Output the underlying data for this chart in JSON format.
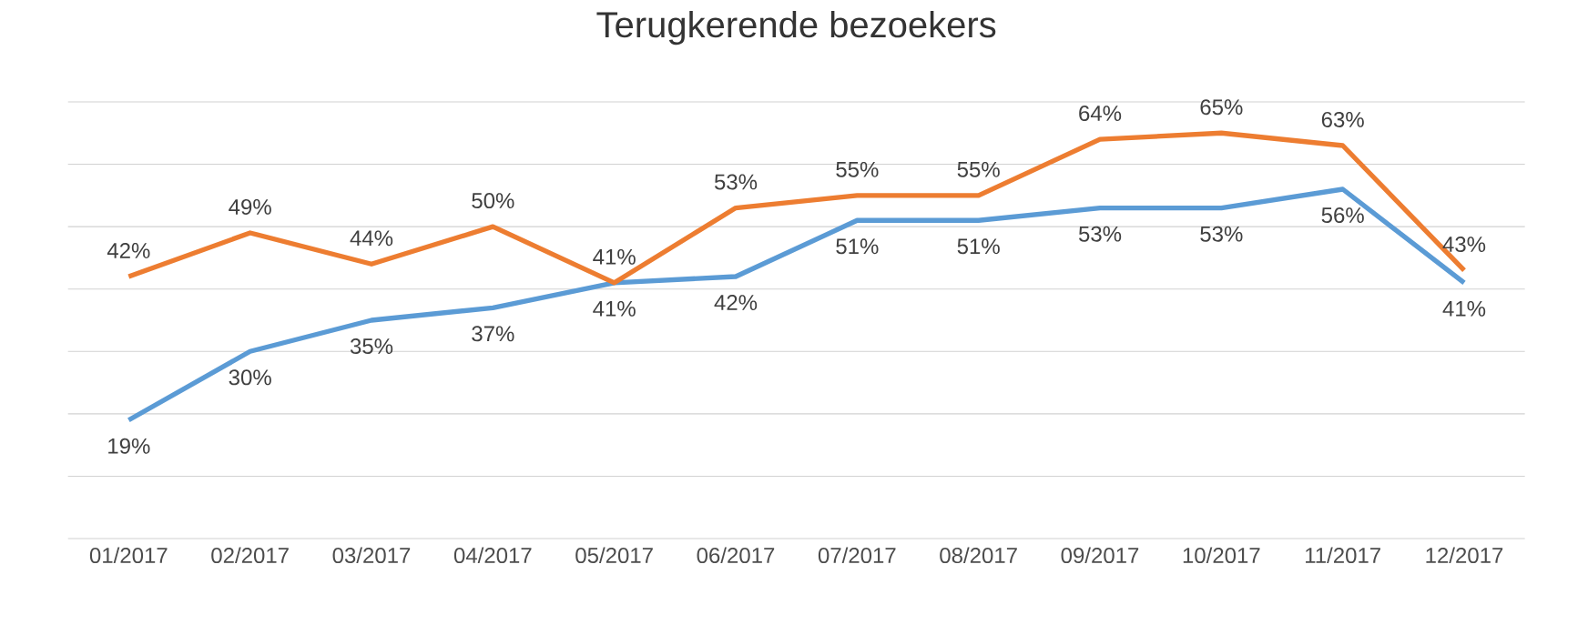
{
  "chart_data": {
    "type": "line",
    "title": "Terugkerende bezoekers",
    "categories": [
      "01/2017",
      "02/2017",
      "03/2017",
      "04/2017",
      "05/2017",
      "06/2017",
      "07/2017",
      "08/2017",
      "09/2017",
      "10/2017",
      "11/2017",
      "12/2017"
    ],
    "series": [
      {
        "color": "#5b9bd5",
        "values": [
          19,
          30,
          35,
          37,
          41,
          42,
          51,
          51,
          53,
          53,
          56,
          41
        ],
        "value_labels": [
          "19%",
          "30%",
          "35%",
          "37%",
          "41%",
          "42%",
          "51%",
          "51%",
          "53%",
          "53%",
          "56%",
          "41%"
        ]
      },
      {
        "color": "#ed7d31",
        "values": [
          42,
          49,
          44,
          50,
          41,
          53,
          55,
          55,
          64,
          65,
          63,
          43
        ],
        "value_labels": [
          "42%",
          "49%",
          "44%",
          "50%",
          "41%",
          "53%",
          "55%",
          "55%",
          "64%",
          "65%",
          "63%",
          "43%"
        ]
      }
    ],
    "ylim": [
      0,
      70
    ],
    "yticks": [
      {
        "value": 0,
        "label": null
      },
      {
        "value": 10,
        "label": null
      },
      {
        "value": 20,
        "label": null
      },
      {
        "value": 30,
        "label": null
      },
      {
        "value": 40,
        "label": null
      },
      {
        "value": 50,
        "label": null
      },
      {
        "value": 60,
        "label": null
      },
      {
        "value": 70,
        "label": null
      }
    ],
    "grid": "y",
    "tick_labels": "x",
    "marker": "none",
    "line_style": "solid"
  }
}
